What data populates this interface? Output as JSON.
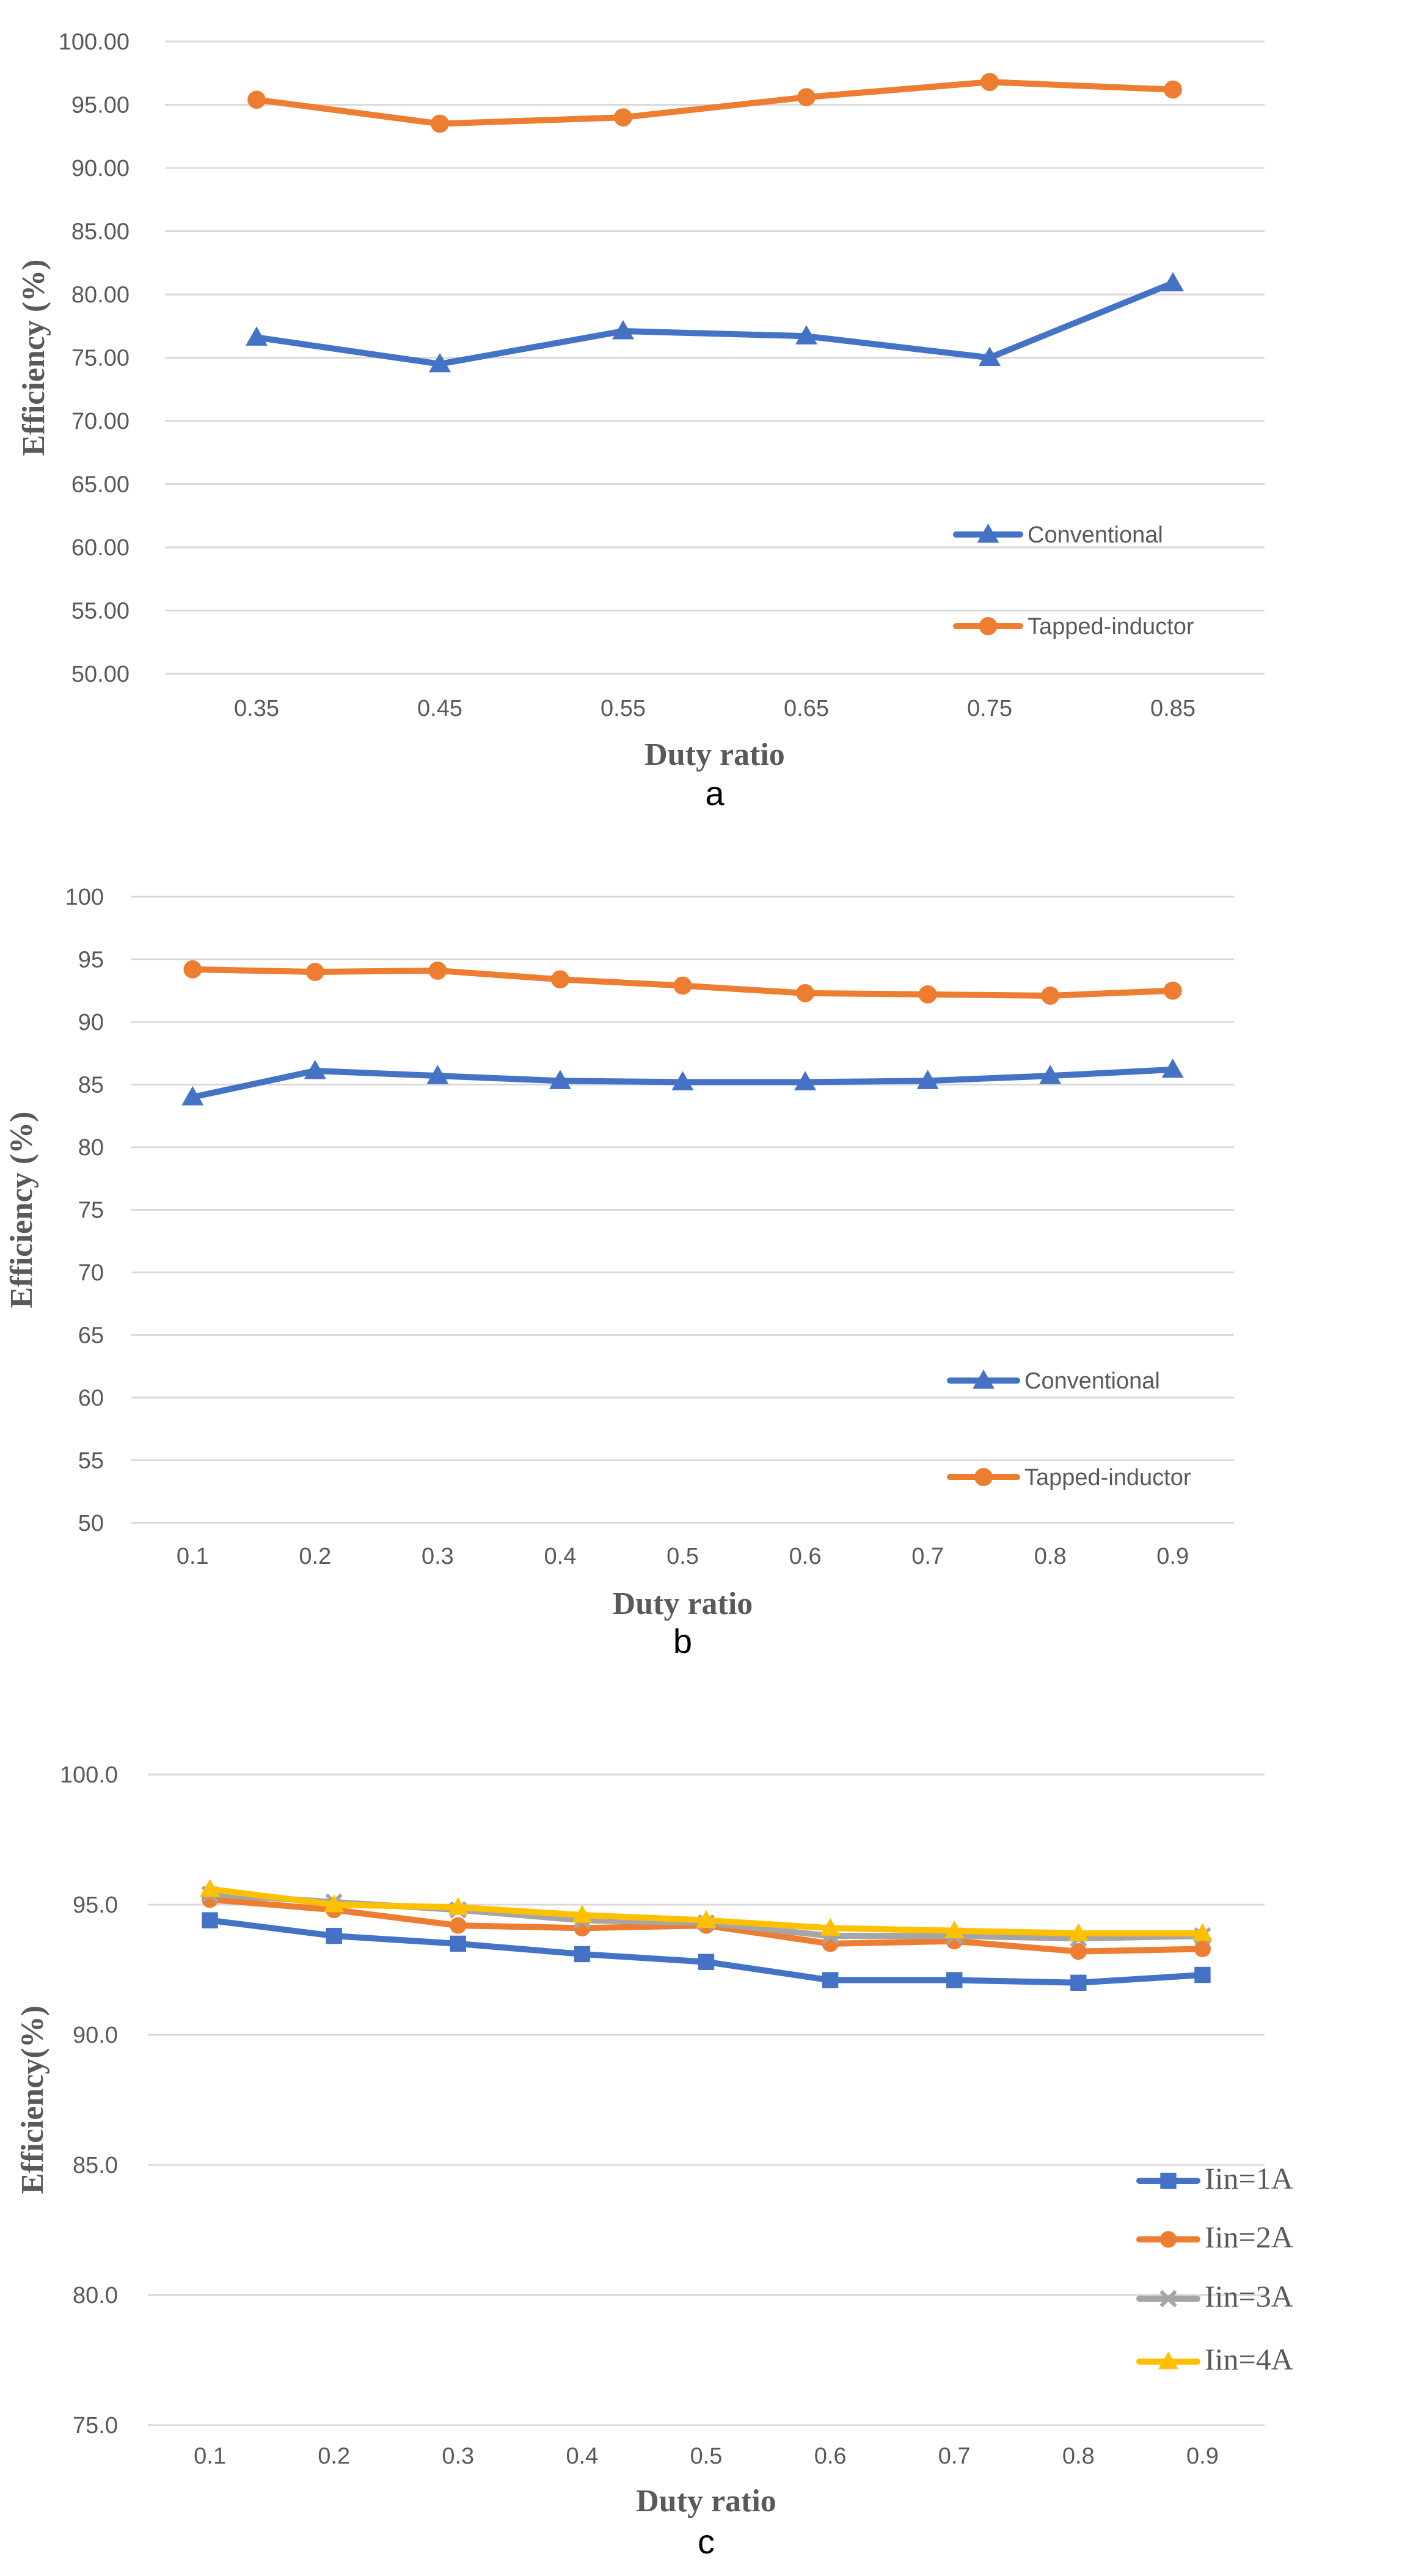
{
  "colors": {
    "blue": "#4472c4",
    "orange": "#ed7d31",
    "gray": "#a5a5a5",
    "gold": "#ffc000"
  },
  "chart_data": [
    {
      "type": "line",
      "panel_label": "a",
      "x": [
        "0.35",
        "0.45",
        "0.55",
        "0.65",
        "0.75",
        "0.85"
      ],
      "xlabel": "Duty ratio",
      "ylabel": "Efficiency (%)",
      "ylim": [
        50,
        100
      ],
      "ytick_step": 5,
      "ytick_labels": [
        "50.00",
        "55.00",
        "60.00",
        "65.00",
        "70.00",
        "75.00",
        "80.00",
        "85.00",
        "90.00",
        "95.00",
        "100.00"
      ],
      "grid": true,
      "legend_position": "bottom-right",
      "series": [
        {
          "name": "Conventional",
          "color": "#4472c4",
          "marker": "triangle",
          "values": [
            76.6,
            74.5,
            77.1,
            76.7,
            75.0,
            80.9
          ]
        },
        {
          "name": "Tapped-inductor",
          "color": "#ed7d31",
          "marker": "circle",
          "values": [
            95.4,
            93.5,
            94.0,
            95.6,
            96.8,
            96.2
          ]
        }
      ]
    },
    {
      "type": "line",
      "panel_label": "b",
      "x": [
        "0.1",
        "0.2",
        "0.3",
        "0.4",
        "0.5",
        "0.6",
        "0.7",
        "0.8",
        "0.9"
      ],
      "xlabel": "Duty ratio",
      "ylabel": "Efficiency (%)",
      "ylim": [
        50,
        100
      ],
      "ytick_step": 5,
      "ytick_labels": [
        "50",
        "55",
        "60",
        "65",
        "70",
        "75",
        "80",
        "85",
        "90",
        "95",
        "100"
      ],
      "grid": true,
      "legend_position": "bottom-right",
      "series": [
        {
          "name": "Conventional",
          "color": "#4472c4",
          "marker": "triangle",
          "values": [
            84.0,
            86.1,
            85.7,
            85.3,
            85.2,
            85.2,
            85.3,
            85.7,
            86.2
          ]
        },
        {
          "name": "Tapped-inductor",
          "color": "#ed7d31",
          "marker": "circle",
          "values": [
            94.2,
            94.0,
            94.1,
            93.4,
            92.9,
            92.3,
            92.2,
            92.1,
            92.5
          ]
        }
      ]
    },
    {
      "type": "line",
      "panel_label": "c",
      "x": [
        "0.1",
        "0.2",
        "0.3",
        "0.4",
        "0.5",
        "0.6",
        "0.7",
        "0.8",
        "0.9"
      ],
      "xlabel": "Duty ratio",
      "ylabel": "Efficiency(%)",
      "ylim": [
        75,
        100
      ],
      "ytick_step": 5,
      "ytick_labels": [
        "75.0",
        "80.0",
        "85.0",
        "90.0",
        "95.0",
        "100.0"
      ],
      "grid": true,
      "legend_position": "bottom-right",
      "series": [
        {
          "name": "Iin=1A",
          "color": "#4472c4",
          "marker": "square",
          "values": [
            94.4,
            93.8,
            93.5,
            93.1,
            92.8,
            92.1,
            92.1,
            92.0,
            92.3
          ]
        },
        {
          "name": "Iin=2A",
          "color": "#ed7d31",
          "marker": "circle",
          "values": [
            95.2,
            94.8,
            94.2,
            94.1,
            94.2,
            93.5,
            93.6,
            93.2,
            93.3
          ]
        },
        {
          "name": "Iin=3A",
          "color": "#a5a5a5",
          "marker": "x",
          "values": [
            95.4,
            95.1,
            94.8,
            94.4,
            94.3,
            93.8,
            93.8,
            93.7,
            93.8
          ]
        },
        {
          "name": "Iin=4A",
          "color": "#ffc000",
          "marker": "triangle",
          "values": [
            95.6,
            95.0,
            94.9,
            94.6,
            94.4,
            94.1,
            94.0,
            93.9,
            93.9
          ]
        }
      ]
    }
  ]
}
